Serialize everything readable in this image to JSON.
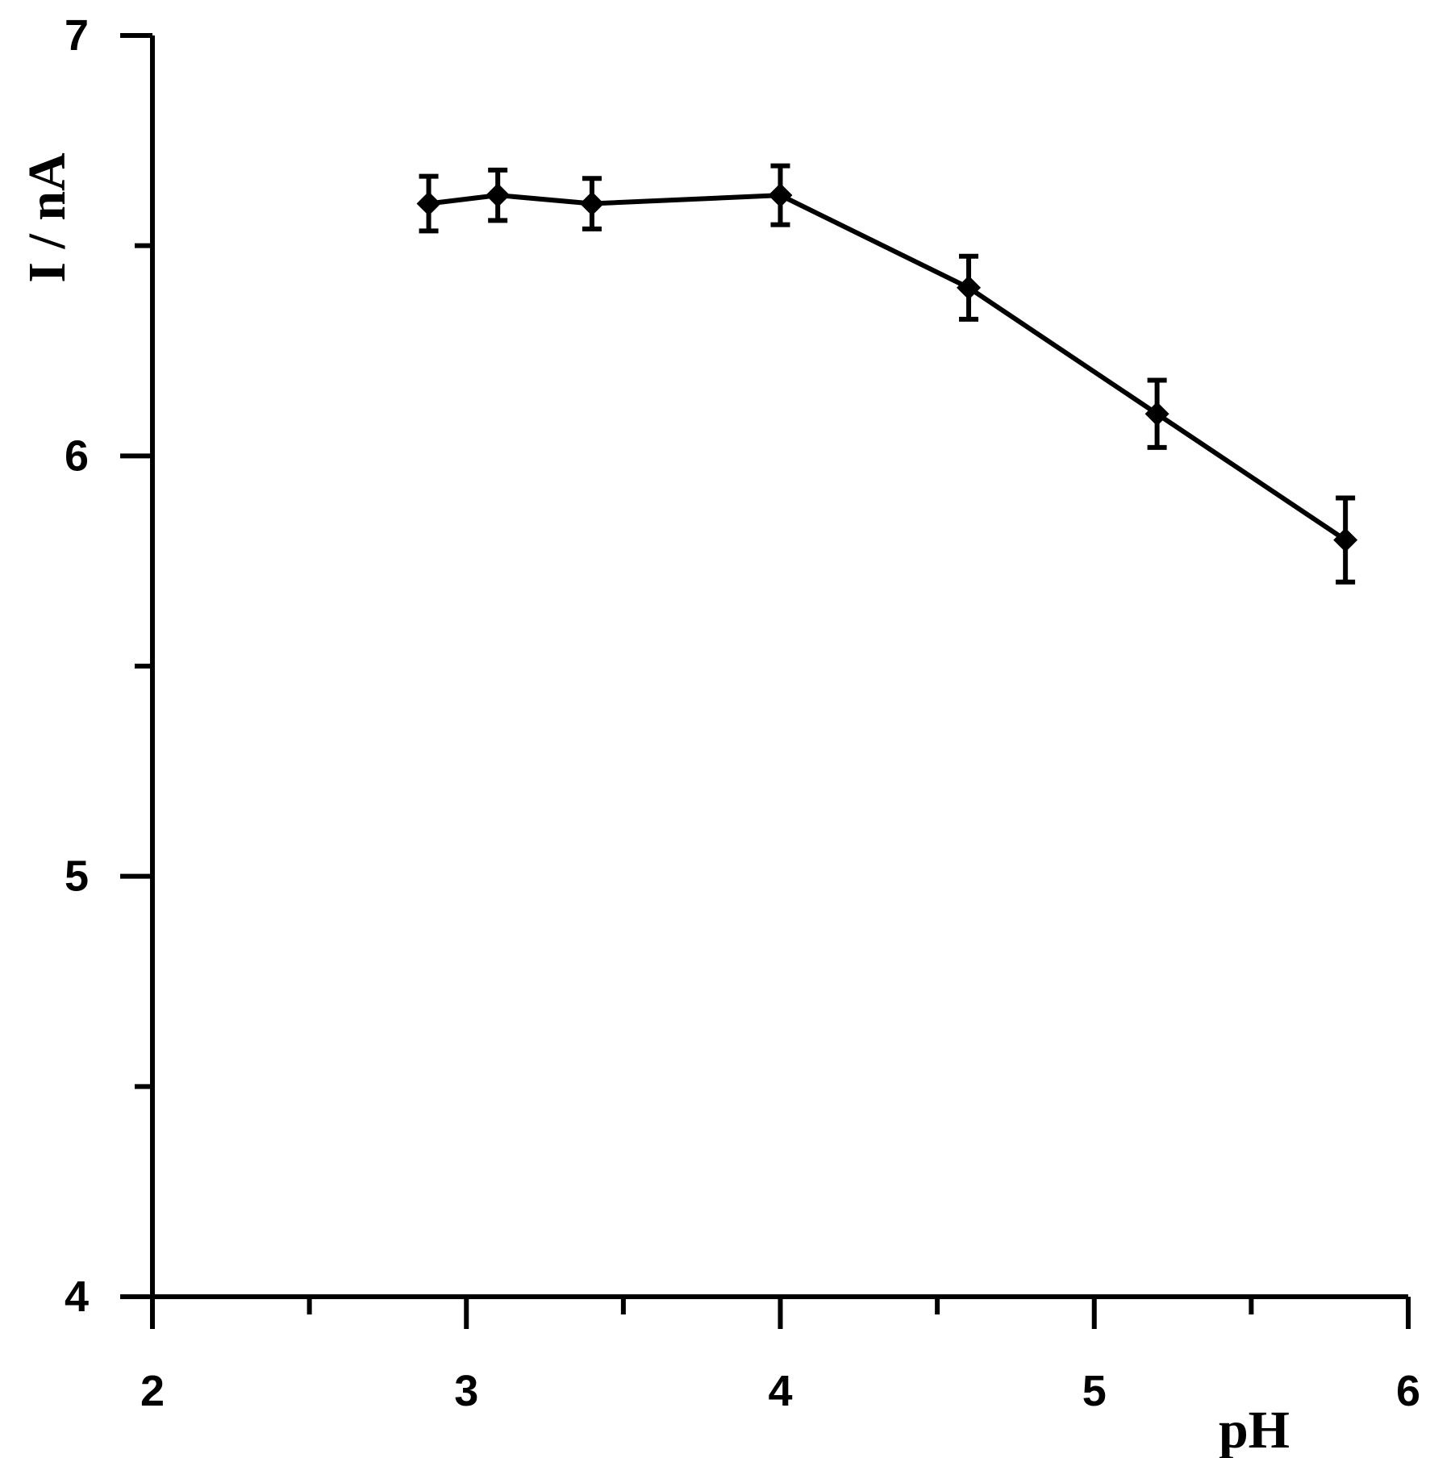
{
  "chart_data": {
    "type": "line",
    "title": "",
    "xlabel": "pH",
    "ylabel": "I / nA",
    "xlim": [
      2,
      6
    ],
    "ylim": [
      4,
      7
    ],
    "x_major_ticks": [
      2,
      3,
      4,
      5,
      6
    ],
    "x_tick_labels": [
      "2",
      "3",
      "4",
      "5",
      "6"
    ],
    "x_minor_ticks": [
      2.5,
      3.5,
      4.5,
      5.5
    ],
    "y_major_ticks": [
      4,
      5,
      6,
      7
    ],
    "y_tick_labels": [
      "4",
      "5",
      "6",
      "7"
    ],
    "y_minor_ticks": [
      4.5,
      5.5,
      6.5
    ],
    "grid": false,
    "legend": "none",
    "marker": "diamond",
    "color": "#000000",
    "series": [
      {
        "x": [
          2.88,
          3.1,
          3.4,
          4.0,
          4.6,
          5.2,
          5.8
        ],
        "y": [
          6.6,
          6.62,
          6.6,
          6.62,
          6.4,
          6.1,
          5.8
        ],
        "error": [
          0.065,
          0.06,
          0.06,
          0.07,
          0.075,
          0.08,
          0.1
        ]
      }
    ]
  }
}
